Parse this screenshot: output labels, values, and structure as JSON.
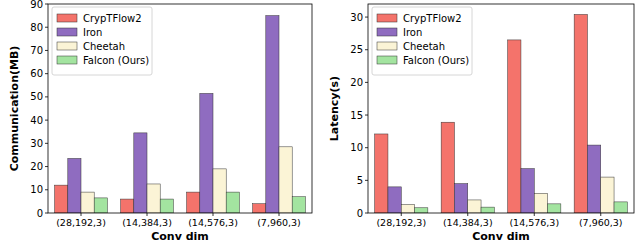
{
  "chart_data": [
    {
      "type": "bar",
      "xlabel": "Conv dim",
      "ylabel": "Communication(MB)",
      "categories": [
        "(28,192,3)",
        "(14,384,3)",
        "(14,576,3)",
        "(7,960,3)"
      ],
      "series": [
        {
          "name": "CrypTFlow2",
          "color": "#f4736b",
          "values": [
            12,
            6,
            9,
            4
          ]
        },
        {
          "name": "Iron",
          "color": "#8f6cc0",
          "values": [
            23.5,
            34.5,
            51.5,
            85
          ]
        },
        {
          "name": "Cheetah",
          "color": "#fbf4d6",
          "values": [
            9,
            12.5,
            19,
            28.5
          ]
        },
        {
          "name": "Falcon (Ours)",
          "color": "#a3e4a0",
          "values": [
            6.5,
            6,
            9,
            7
          ]
        }
      ],
      "ylim": [
        0,
        90
      ],
      "yticks": [
        0,
        10,
        20,
        30,
        40,
        50,
        60,
        70,
        80,
        90
      ],
      "grid": false,
      "legend": "upper left"
    },
    {
      "type": "bar",
      "xlabel": "Conv dim",
      "ylabel": "Latency(s)",
      "categories": [
        "(28,192,3)",
        "(14,384,3)",
        "(14,576,3)",
        "(7,960,3)"
      ],
      "series": [
        {
          "name": "CrypTFlow2",
          "color": "#f4736b",
          "values": [
            12.1,
            13.9,
            26.5,
            30.4
          ]
        },
        {
          "name": "Iron",
          "color": "#8f6cc0",
          "values": [
            4.0,
            4.5,
            6.8,
            10.4
          ]
        },
        {
          "name": "Cheetah",
          "color": "#fbf4d6",
          "values": [
            1.3,
            2.0,
            3.0,
            5.5
          ]
        },
        {
          "name": "Falcon (Ours)",
          "color": "#a3e4a0",
          "values": [
            0.8,
            0.9,
            1.4,
            1.7
          ]
        }
      ],
      "ylim": [
        0,
        32
      ],
      "yticks": [
        0,
        5,
        10,
        15,
        20,
        25,
        30
      ],
      "grid": false,
      "legend": "upper left"
    }
  ]
}
